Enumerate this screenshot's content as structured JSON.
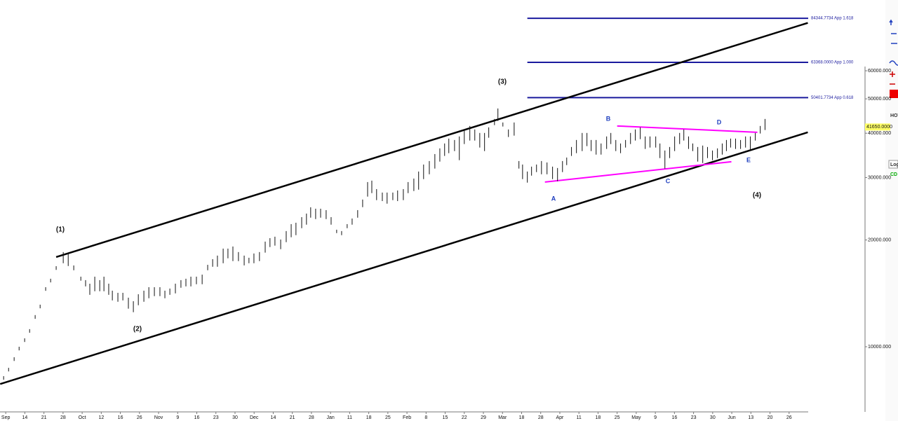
{
  "chart_data": {
    "type": "ohlc",
    "log": true,
    "xlim": [
      -0.3,
      42
    ],
    "ylim": [
      6550,
      95000
    ],
    "categories": [
      "Sep",
      "14",
      "21",
      "28",
      "Oct",
      "12",
      "16",
      "26",
      "Nov",
      "9",
      "16",
      "23",
      "30",
      "Dec",
      "14",
      "21",
      "28",
      "Jan",
      "11",
      "18",
      "25",
      "Feb",
      "8",
      "15",
      "22",
      "29",
      "Mar",
      "18",
      "28",
      "Apr",
      "11",
      "18",
      "25",
      "May",
      "9",
      "16",
      "23",
      "30",
      "Jun",
      "13",
      "20",
      "26"
    ],
    "yticks": [
      {
        "value": 10000,
        "label": "10000.000"
      },
      {
        "value": 20000,
        "label": "20000.000"
      },
      {
        "value": 30000,
        "label": "30000.000"
      },
      {
        "value": 40000,
        "label": "40000.000"
      },
      {
        "value": 50000,
        "label": "50000.000"
      },
      {
        "value": 60000,
        "label": "60000.000"
      }
    ],
    "bars": {
      "color": "#111111",
      "x": [
        -0.11,
        0.15,
        0.44,
        0.7,
        0.99,
        1.25,
        1.54,
        1.8,
        2.09,
        2.35,
        2.64,
        3.01,
        3.27,
        3.56,
        3.93,
        4.18,
        4.4,
        4.66,
        4.92,
        5.14,
        5.39,
        5.58,
        5.87,
        6.13,
        6.42,
        6.68,
        6.94,
        7.23,
        7.49,
        7.78,
        8.07,
        8.33,
        8.59,
        8.88,
        9.17,
        9.43,
        9.69,
        9.98,
        10.28,
        10.57,
        10.83,
        11.08,
        11.38,
        11.63,
        11.89,
        12.18,
        12.48,
        12.73,
        12.99,
        13.28,
        13.58,
        13.83,
        14.09,
        14.39,
        14.68,
        14.94,
        15.19,
        15.49,
        15.74,
        15.96,
        16.22,
        16.48,
        16.77,
        17.03,
        17.32,
        17.58,
        17.87,
        18.13,
        18.42,
        18.68,
        18.94,
        19.16,
        19.41,
        19.71,
        19.96,
        20.26,
        20.51,
        20.81,
        21.06,
        21.36,
        21.61,
        21.87,
        22.17,
        22.46,
        22.72,
        22.97,
        23.19,
        23.49,
        23.74,
        24.0,
        24.29,
        24.55,
        24.81,
        25.06,
        25.28,
        25.58,
        25.76,
        26.02,
        26.31,
        26.61,
        26.86,
        27.05,
        27.3,
        27.52,
        27.78,
        28.04,
        28.33,
        28.62,
        28.88,
        29.14,
        29.36,
        29.61,
        29.87,
        30.17,
        30.42,
        30.64,
        30.9,
        31.16,
        31.45,
        31.67,
        31.93,
        32.18,
        32.44,
        32.7,
        32.95,
        33.21,
        33.47,
        33.72,
        34.02,
        34.24,
        34.5,
        34.75,
        35.01,
        35.27,
        35.49,
        35.74,
        35.96,
        36.22,
        36.48,
        36.73,
        36.99,
        37.25,
        37.5,
        37.72,
        37.94,
        38.2,
        38.46,
        38.72,
        38.97,
        39.23,
        39.49,
        39.74
      ],
      "high": [
        8260,
        8720,
        9340,
        10000,
        10560,
        11210,
        12280,
        13140,
        14720,
        15550,
        16870,
        18490,
        18320,
        16950,
        15760,
        15410,
        15060,
        15760,
        15410,
        15760,
        15060,
        14390,
        14190,
        14190,
        13750,
        13440,
        14060,
        14390,
        14720,
        14720,
        14720,
        14390,
        14590,
        15060,
        15410,
        15550,
        15760,
        15760,
        15970,
        17020,
        17660,
        18070,
        18910,
        18910,
        19170,
        18490,
        18070,
        17820,
        18320,
        18490,
        19790,
        20240,
        20430,
        20060,
        21190,
        22170,
        22370,
        23200,
        23740,
        24730,
        24500,
        24500,
        24280,
        23200,
        21380,
        21190,
        22170,
        22990,
        24280,
        26000,
        29130,
        29400,
        27830,
        27210,
        27210,
        27210,
        27580,
        27830,
        29130,
        29800,
        31190,
        32640,
        33390,
        34940,
        36250,
        37420,
        38630,
        38280,
        39170,
        40990,
        41930,
        40990,
        40070,
        40070,
        41550,
        43880,
        46970,
        42890,
        40990,
        42890,
        33390,
        32640,
        31190,
        32200,
        32640,
        33390,
        33080,
        32200,
        31910,
        33390,
        34160,
        36580,
        38280,
        40070,
        40070,
        38280,
        38280,
        37420,
        39170,
        40070,
        38280,
        37420,
        38280,
        40070,
        40990,
        41550,
        39170,
        39170,
        39170,
        37420,
        35750,
        36580,
        39170,
        40070,
        40990,
        39170,
        37420,
        36580,
        36920,
        36580,
        35750,
        36250,
        37420,
        38280,
        38630,
        38630,
        38280,
        39170,
        39170,
        40070,
        41930,
        43880
      ],
      "low": [
        8100,
        8550,
        9150,
        9800,
        10350,
        10990,
        12030,
        12880,
        14430,
        15240,
        16530,
        17260,
        16950,
        16490,
        15410,
        14850,
        14060,
        14390,
        14390,
        14390,
        14060,
        13560,
        13440,
        13560,
        12850,
        12560,
        13140,
        13440,
        13750,
        13940,
        13940,
        13750,
        14060,
        14190,
        14720,
        14850,
        14850,
        15060,
        15060,
        16490,
        16870,
        16870,
        17260,
        17820,
        17500,
        17500,
        17020,
        17260,
        17260,
        17500,
        18490,
        19170,
        19350,
        18910,
        19790,
        20430,
        20710,
        21670,
        22170,
        23200,
        22990,
        23200,
        22990,
        22170,
        20990,
        20710,
        21670,
        22170,
        23200,
        24840,
        26600,
        27210,
        26000,
        25840,
        25410,
        26000,
        25840,
        26000,
        27210,
        27580,
        27830,
        29800,
        30750,
        31910,
        33390,
        34640,
        35270,
        35750,
        33700,
        37420,
        38280,
        38280,
        36580,
        35750,
        38990,
        42310,
        43480,
        41930,
        39170,
        39520,
        31910,
        29800,
        29130,
        30480,
        31190,
        30750,
        30750,
        29800,
        29400,
        31190,
        32640,
        34640,
        35270,
        35750,
        36920,
        35750,
        34940,
        34940,
        36250,
        37420,
        35750,
        35270,
        36580,
        37420,
        38280,
        38630,
        36250,
        36580,
        36580,
        34160,
        31910,
        34160,
        35750,
        37420,
        38280,
        36250,
        35750,
        33390,
        33080,
        34160,
        33700,
        34160,
        34940,
        35750,
        36580,
        36250,
        36250,
        36580,
        35750,
        38280,
        40070,
        40990
      ]
    },
    "trendlines": [
      {
        "color": "#000000",
        "x": [
          2.64,
          41.98
        ],
        "y": [
          17900,
          81880
        ]
      },
      {
        "color": "#000000",
        "x": [
          -0.29,
          41.98
        ],
        "y": [
          7850,
          40240
        ]
      },
      {
        "color": "#ff00ff",
        "x": [
          32.0,
          39.34
        ],
        "y": [
          41930,
          40240
        ]
      },
      {
        "color": "#ff00ff",
        "x": [
          28.22,
          37.98
        ],
        "y": [
          29130,
          33240
        ]
      }
    ],
    "levels": {
      "color": "#1a1a9e",
      "start": 27.3,
      "items": [
        {
          "value": 84344.7734,
          "label": "84344.7734 App 1.618"
        },
        {
          "value": 63368.0,
          "label": "63368.0000 App 1.000"
        },
        {
          "value": 50401.7734,
          "label": "50401.7734 App 0.618"
        }
      ]
    },
    "last_price": {
      "value": 41650,
      "label": "41650.0000",
      "color": "#ffff66"
    },
    "annotations": [
      "(1)",
      "(2)",
      "(3)",
      "(4)",
      "A",
      "B",
      "C",
      "D",
      "E"
    ]
  },
  "toolbar": {
    "items": [
      "HOT",
      "Log",
      "CD"
    ]
  }
}
